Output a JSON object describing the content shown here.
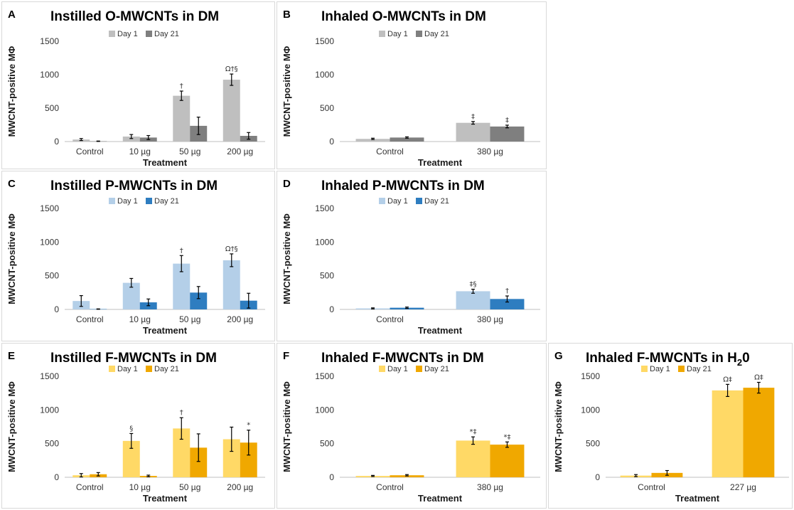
{
  "legend": {
    "day1": "Day 1",
    "day21": "Day 21"
  },
  "chart_data": [
    {
      "id": "A",
      "type": "bar",
      "label": "A",
      "title": "Instilled O-MWCNTs in DM",
      "xlabel": "Treatment",
      "ylabel": "MWCNT-positive MΦ",
      "ylim": [
        0,
        1500
      ],
      "yticks": [
        0,
        500,
        1000,
        1500
      ],
      "categories": [
        "Control",
        "10 µg",
        "50 µg",
        "200 µg"
      ],
      "colors": [
        "#bfbfbf",
        "#7f7f7f"
      ],
      "series": [
        {
          "name": "Day 1",
          "values": [
            30,
            75,
            685,
            925
          ],
          "errors": [
            15,
            30,
            70,
            85
          ]
        },
        {
          "name": "Day 21",
          "values": [
            5,
            60,
            235,
            85
          ],
          "errors": [
            3,
            30,
            130,
            50
          ]
        }
      ],
      "annotations": [
        {
          "category": 2,
          "series": 0,
          "text": "†"
        },
        {
          "category": 3,
          "series": 0,
          "text": "Ω†§"
        }
      ]
    },
    {
      "id": "B",
      "type": "bar",
      "label": "B",
      "title": "Inhaled O-MWCNTs in DM",
      "xlabel": "Treatment",
      "ylabel": "MWCNT-positive MΦ",
      "ylim": [
        0,
        1500
      ],
      "yticks": [
        0,
        500,
        1000,
        1500
      ],
      "categories": [
        "Control",
        "380 µg"
      ],
      "colors": [
        "#bfbfbf",
        "#7f7f7f"
      ],
      "series": [
        {
          "name": "Day 1",
          "values": [
            40,
            280
          ],
          "errors": [
            10,
            20
          ]
        },
        {
          "name": "Day 21",
          "values": [
            60,
            225
          ],
          "errors": [
            10,
            20
          ]
        }
      ],
      "annotations": [
        {
          "category": 1,
          "series": 0,
          "text": "‡"
        },
        {
          "category": 1,
          "series": 1,
          "text": "‡"
        }
      ]
    },
    {
      "id": "C",
      "type": "bar",
      "label": "C",
      "title": "Instilled P-MWCNTs in DM",
      "xlabel": "Treatment",
      "ylabel": "MWCNT-positive MΦ",
      "ylim": [
        0,
        1500
      ],
      "yticks": [
        0,
        500,
        1000,
        1500
      ],
      "categories": [
        "Control",
        "10 µg",
        "50 µg",
        "200 µg"
      ],
      "colors": [
        "#b4cfe8",
        "#2e7dc0"
      ],
      "series": [
        {
          "name": "Day 1",
          "values": [
            125,
            395,
            680,
            730
          ],
          "errors": [
            80,
            65,
            120,
            95
          ]
        },
        {
          "name": "Day 21",
          "values": [
            5,
            105,
            250,
            130
          ],
          "errors": [
            3,
            50,
            90,
            110
          ]
        }
      ],
      "annotations": [
        {
          "category": 2,
          "series": 0,
          "text": "†"
        },
        {
          "category": 3,
          "series": 0,
          "text": "Ω†§"
        }
      ]
    },
    {
      "id": "D",
      "type": "bar",
      "label": "D",
      "title": "Inhaled P-MWCNTs in DM",
      "xlabel": "Treatment",
      "ylabel": "MWCNT-positive MΦ",
      "ylim": [
        0,
        1500
      ],
      "yticks": [
        0,
        500,
        1000,
        1500
      ],
      "categories": [
        "Control",
        "380 µg"
      ],
      "colors": [
        "#b4cfe8",
        "#2e7dc0"
      ],
      "series": [
        {
          "name": "Day 1",
          "values": [
            15,
            270
          ],
          "errors": [
            8,
            30
          ]
        },
        {
          "name": "Day 21",
          "values": [
            25,
            155
          ],
          "errors": [
            10,
            45
          ]
        }
      ],
      "annotations": [
        {
          "category": 1,
          "series": 0,
          "text": "‡§"
        },
        {
          "category": 1,
          "series": 1,
          "text": "†"
        }
      ]
    },
    {
      "id": "E",
      "type": "bar",
      "label": "E",
      "title": "Instilled F-MWCNTs in DM",
      "xlabel": "Treatment",
      "ylabel": "MWCNT-positive MΦ",
      "ylim": [
        0,
        1500
      ],
      "yticks": [
        0,
        500,
        1000,
        1500
      ],
      "categories": [
        "Control",
        "10 µg",
        "50 µg",
        "200 µg"
      ],
      "colors": [
        "#ffd966",
        "#f0a800"
      ],
      "series": [
        {
          "name": "Day 1",
          "values": [
            30,
            540,
            725,
            565
          ],
          "errors": [
            25,
            110,
            160,
            180
          ]
        },
        {
          "name": "Day 21",
          "values": [
            45,
            20,
            440,
            515
          ],
          "errors": [
            25,
            12,
            205,
            185
          ]
        }
      ],
      "annotations": [
        {
          "category": 1,
          "series": 0,
          "text": "§"
        },
        {
          "category": 2,
          "series": 0,
          "text": "†"
        },
        {
          "category": 3,
          "series": 1,
          "text": "*"
        }
      ]
    },
    {
      "id": "F",
      "type": "bar",
      "label": "F",
      "title": "Inhaled F-MWCNTs in DM",
      "xlabel": "Treatment",
      "ylabel": "MWCNT-positive MΦ",
      "ylim": [
        0,
        1500
      ],
      "yticks": [
        0,
        500,
        1000,
        1500
      ],
      "categories": [
        "Control",
        "380 µg"
      ],
      "colors": [
        "#ffd966",
        "#f0a800"
      ],
      "series": [
        {
          "name": "Day 1",
          "values": [
            20,
            545
          ],
          "errors": [
            8,
            55
          ]
        },
        {
          "name": "Day 21",
          "values": [
            30,
            485
          ],
          "errors": [
            10,
            40
          ]
        }
      ],
      "annotations": [
        {
          "category": 1,
          "series": 0,
          "text": "*‡"
        },
        {
          "category": 1,
          "series": 1,
          "text": "*‡"
        }
      ]
    },
    {
      "id": "G",
      "type": "bar",
      "label": "G",
      "title": "Inhaled F-MWCNTs in H",
      "title_sub": "2",
      "title_end": "0",
      "xlabel": "Treatment",
      "ylabel": "MWCNT-positive MΦ",
      "ylim": [
        0,
        1500
      ],
      "yticks": [
        0,
        500,
        1000,
        1500
      ],
      "categories": [
        "Control",
        "227 µg"
      ],
      "colors": [
        "#ffd966",
        "#f0a800"
      ],
      "series": [
        {
          "name": "Day 1",
          "values": [
            25,
            1290
          ],
          "errors": [
            15,
            90
          ]
        },
        {
          "name": "Day 21",
          "values": [
            65,
            1330
          ],
          "errors": [
            35,
            80
          ]
        }
      ],
      "annotations": [
        {
          "category": 1,
          "series": 0,
          "text": "Ω‡"
        },
        {
          "category": 1,
          "series": 1,
          "text": "Ω‡"
        }
      ]
    }
  ]
}
